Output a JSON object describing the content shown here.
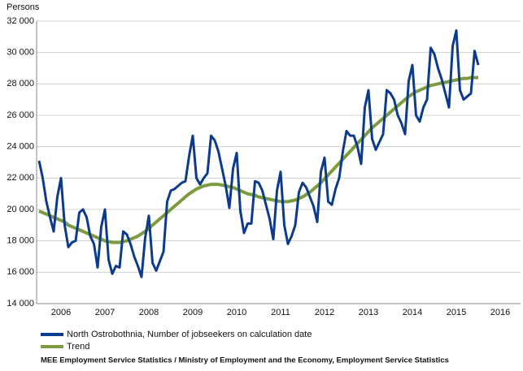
{
  "chart_data": {
    "type": "line",
    "y_axis_label": "Persons",
    "source": "MEE Employment Service Statistics / Ministry of Employment and the Economy, Employment Service Statistics",
    "categories": [
      null,
      null,
      null,
      null,
      null,
      null,
      "2006",
      null,
      null,
      null,
      null,
      null,
      null,
      null,
      null,
      null,
      null,
      null,
      "2007",
      null,
      null,
      null,
      null,
      null,
      null,
      null,
      null,
      null,
      null,
      null,
      "2008",
      null,
      null,
      null,
      null,
      null,
      null,
      null,
      null,
      null,
      null,
      null,
      "2009",
      null,
      null,
      null,
      null,
      null,
      null,
      null,
      null,
      null,
      null,
      null,
      "2010",
      null,
      null,
      null,
      null,
      null,
      null,
      null,
      null,
      null,
      null,
      null,
      "2011",
      null,
      null,
      null,
      null,
      null,
      null,
      null,
      null,
      null,
      null,
      null,
      "2012",
      null,
      null,
      null,
      null,
      null,
      null,
      null,
      null,
      null,
      null,
      null,
      "2013",
      null,
      null,
      null,
      null,
      null,
      null,
      null,
      null,
      null,
      null,
      null,
      "2014",
      null,
      null,
      null,
      null,
      null,
      null,
      null,
      null,
      null,
      null,
      null,
      "2015",
      null,
      null,
      null,
      null,
      null,
      null,
      null,
      null,
      null,
      null,
      null,
      "2016",
      null,
      null,
      null,
      null,
      null
    ],
    "series": [
      {
        "name": "North Ostrobothnia, Number of jobseekers on calculation date",
        "color": "#0d3b8c",
        "values": [
          23100,
          22000,
          20500,
          19500,
          18600,
          20800,
          22000,
          19000,
          17600,
          17900,
          18000,
          19800,
          20000,
          19500,
          18300,
          17800,
          16300,
          18900,
          20000,
          16800,
          15900,
          16400,
          16300,
          18600,
          18400,
          17800,
          17000,
          16400,
          15700,
          18200,
          19600,
          16600,
          16100,
          16700,
          17300,
          20500,
          21200,
          21300,
          21500,
          21700,
          21800,
          23400,
          24700,
          22000,
          21600,
          22000,
          22300,
          24700,
          24400,
          23700,
          22600,
          21500,
          20100,
          22600,
          23600,
          19900,
          18500,
          19100,
          19100,
          21800,
          21700,
          21200,
          20300,
          19400,
          18100,
          21200,
          22400,
          19000,
          17800,
          18300,
          19000,
          21100,
          21700,
          21400,
          20800,
          20200,
          19200,
          22400,
          23300,
          20500,
          20300,
          21300,
          22000,
          23700,
          25000,
          24700,
          24700,
          24000,
          22900,
          26500,
          27600,
          24500,
          23800,
          24300,
          24800,
          27600,
          27400,
          27000,
          26000,
          25500,
          24800,
          28200,
          29200,
          26000,
          25600,
          26500,
          27000,
          30300,
          29900,
          29000,
          28300,
          27400,
          26500,
          30400,
          31400,
          27600,
          27000,
          27200,
          27400,
          30100,
          29200,
          null,
          null,
          null,
          null,
          null,
          null,
          null,
          null,
          null,
          null,
          null
        ]
      },
      {
        "name": "Trend",
        "color": "#7b9b3e",
        "values": [
          19900,
          19800,
          19700,
          19600,
          19500,
          19400,
          19300,
          19200,
          19000,
          18900,
          18800,
          18700,
          18600,
          18500,
          18400,
          18300,
          18200,
          18100,
          18000,
          17950,
          17900,
          17900,
          17900,
          17950,
          18000,
          18100,
          18200,
          18300,
          18450,
          18600,
          18800,
          19000,
          19200,
          19400,
          19600,
          19800,
          20000,
          20200,
          20400,
          20600,
          20800,
          21000,
          21150,
          21300,
          21400,
          21500,
          21550,
          21600,
          21600,
          21600,
          21550,
          21500,
          21450,
          21400,
          21300,
          21200,
          21100,
          21000,
          20950,
          20900,
          20800,
          20750,
          20700,
          20650,
          20600,
          20550,
          20500,
          20500,
          20500,
          20550,
          20600,
          20700,
          20800,
          20950,
          21100,
          21300,
          21500,
          21700,
          21950,
          22200,
          22450,
          22700,
          22950,
          23200,
          23450,
          23700,
          23950,
          24200,
          24450,
          24700,
          24950,
          25200,
          25400,
          25600,
          25800,
          26000,
          26200,
          26400,
          26600,
          26800,
          27000,
          27200,
          27350,
          27500,
          27600,
          27700,
          27800,
          27900,
          27950,
          28000,
          28050,
          28100,
          28150,
          28200,
          28250,
          28300,
          28350,
          28350,
          28400,
          28400,
          28400,
          null,
          null,
          null,
          null,
          null,
          null,
          null,
          null,
          null,
          null,
          null
        ]
      }
    ],
    "ylim": [
      14000,
      32000
    ],
    "yticks": [
      {
        "value": 14000,
        "label": "14 000"
      },
      {
        "value": 16000,
        "label": "16 000"
      },
      {
        "value": 18000,
        "label": "18 000"
      },
      {
        "value": 20000,
        "label": "20 000"
      },
      {
        "value": 22000,
        "label": "22 000"
      },
      {
        "value": 24000,
        "label": "24 000"
      },
      {
        "value": 26000,
        "label": "26 000"
      },
      {
        "value": 28000,
        "label": "28 000"
      },
      {
        "value": 30000,
        "label": "30 000"
      },
      {
        "value": 32000,
        "label": "32 000"
      }
    ],
    "grid": true
  }
}
